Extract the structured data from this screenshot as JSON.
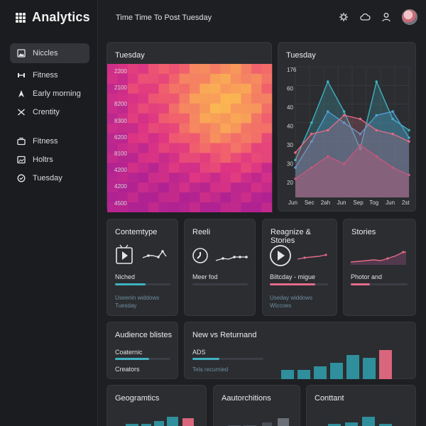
{
  "app": {
    "title": "Analytics"
  },
  "topbar": {
    "title": "Time Time To Post Tuesday"
  },
  "sidebar": {
    "items": [
      {
        "label": "Niccles",
        "icon": "image-icon",
        "active": true
      },
      {
        "label": "Fitness",
        "icon": "dumbbell-icon"
      },
      {
        "label": "Early morning",
        "icon": "cursor-icon"
      },
      {
        "label": "Crentity",
        "icon": "shuffle-icon"
      }
    ],
    "items2": [
      {
        "label": "Fitness",
        "icon": "briefcase-icon"
      },
      {
        "label": "Holtrs",
        "icon": "image-icon"
      },
      {
        "label": "Tuesday",
        "icon": "check-circle-icon"
      }
    ]
  },
  "heatmap_card": {
    "title": "Tuesday",
    "y_labels": [
      "2200",
      "2100",
      "8200",
      "8300",
      "6200",
      "8100",
      "4200",
      "4200",
      "4500"
    ]
  },
  "line_card": {
    "title": "Tuesday",
    "y_labels": [
      "176",
      "60",
      "40",
      "40",
      "30",
      "30",
      "20"
    ],
    "x_labels": [
      "Jun",
      "Sec",
      "2ah",
      "Jun",
      "Sep",
      "Tog",
      "Jun",
      "2st"
    ]
  },
  "tiles": [
    {
      "title": "Contemtype",
      "label": "Niched",
      "sub1": "Useenin widdows",
      "sub2": "Tuesday",
      "accent": "#3fb2c1",
      "fill": 0.3
    },
    {
      "title": "Reeli",
      "label": "Meer fod",
      "sub1": "",
      "sub2": "",
      "accent": "#3fb2c1",
      "fill": 0.0
    },
    {
      "title": "Reagnize & Stories",
      "label": "Biltcday - migue",
      "sub1": "Useday widdows",
      "sub2": "Wiccoes",
      "accent": "#e46a86",
      "fill": 0.45
    },
    {
      "title": "Stories",
      "label": "Photor and",
      "sub1": "",
      "sub2": "",
      "accent": "#e46a86",
      "fill": 0.25
    }
  ],
  "audience": {
    "title": "Audience blistes",
    "label": "Coaternic",
    "sub": "Creators"
  },
  "new_returning": {
    "title": "New vs Returnand",
    "label": "ADS",
    "sub": "Tela recurnied"
  },
  "bottom": [
    {
      "title": "Geogramtics"
    },
    {
      "title": "Aautorchitions"
    },
    {
      "title": "Conttant"
    }
  ],
  "colors": {
    "accent_teal": "#3fb2c1",
    "accent_pink": "#e46a86",
    "heat_high": "#f7b84a",
    "heat_low": "#b83bb0"
  },
  "chart_data": {
    "type": "area",
    "title": "Tuesday",
    "x": [
      "Jun",
      "Sec",
      "2ah",
      "Jun",
      "Sep",
      "Tog",
      "Jun",
      "2st"
    ],
    "y_tick_labels": [
      "176",
      "60",
      "40",
      "40",
      "30",
      "30",
      "20"
    ],
    "series": [
      {
        "values": [
          2.0,
          4.0,
          6.2,
          4.6,
          2.6,
          6.2,
          4.2,
          3.6
        ]
      },
      {
        "values": [
          1.6,
          3.0,
          4.6,
          4.0,
          3.4,
          4.4,
          4.6,
          3.2
        ]
      },
      {
        "values": [
          2.4,
          3.4,
          3.6,
          4.4,
          4.2,
          3.6,
          3.4,
          3.0
        ]
      },
      {
        "values": [
          1.0,
          1.6,
          2.2,
          1.8,
          2.8,
          2.2,
          1.6,
          1.2
        ]
      }
    ],
    "ylim": [
      0,
      7
    ],
    "grid": true
  }
}
